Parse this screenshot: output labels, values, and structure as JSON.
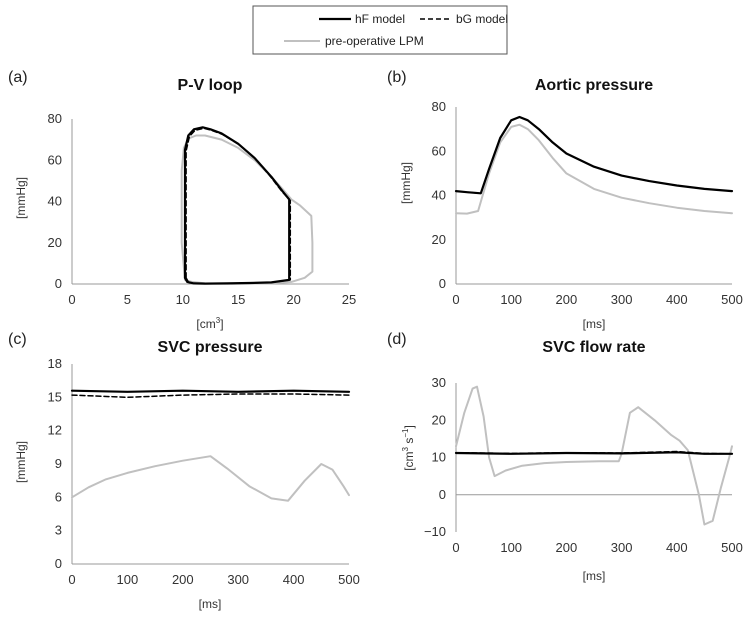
{
  "legend": {
    "entries": [
      {
        "label": "hF model",
        "color": "#000000",
        "style": "solid"
      },
      {
        "label": "bG model",
        "color": "#000000",
        "style": "dashed"
      },
      {
        "label": "pre-operative LPM",
        "color": "#c0c0c0",
        "style": "solid"
      }
    ]
  },
  "chart_data": [
    {
      "type": "line",
      "panel": "(a)",
      "title": "P-V loop",
      "xlabel_main": "[cm",
      "xlabel_sup": "3",
      "xlabel_end": "]",
      "ylabel": "[mmHg]",
      "xlim": [
        0,
        25
      ],
      "ylim": [
        0,
        80
      ],
      "xticks": [
        0,
        5,
        10,
        15,
        20,
        25
      ],
      "yticks": [
        0,
        20,
        40,
        60,
        80
      ],
      "series": [
        {
          "name": "pre-operative LPM",
          "color": "#c0c0c0",
          "dash": "",
          "x": [
            10.2,
            9.9,
            9.9,
            10.1,
            10.5,
            11.2,
            12.0,
            13.5,
            15.0,
            16.5,
            18.0,
            19.0,
            19.8,
            20.6,
            21.6,
            21.7,
            21.7,
            21.0,
            19.8,
            18.0,
            16.0,
            14.0,
            12.0,
            10.8,
            10.2
          ],
          "y": [
            2.0,
            20.0,
            55.0,
            66.0,
            70.5,
            72.0,
            72.0,
            70.0,
            66.0,
            60.0,
            52.0,
            46.0,
            41.0,
            38.0,
            33.0,
            20.0,
            6.0,
            3.0,
            1.0,
            0.3,
            0.2,
            0.1,
            0.3,
            1.0,
            2.0
          ]
        },
        {
          "name": "hF model",
          "color": "#000000",
          "dash": "",
          "x": [
            10.2,
            10.2,
            10.2,
            10.5,
            11.0,
            11.8,
            12.5,
            13.5,
            15.0,
            16.5,
            18.0,
            19.0,
            19.6,
            19.6,
            19.6,
            18.0,
            16.0,
            14.0,
            12.0,
            11.0,
            10.4,
            10.2
          ],
          "y": [
            3.0,
            40.0,
            65.0,
            72.0,
            75.0,
            76.0,
            75.0,
            73.0,
            68.0,
            61.0,
            52.0,
            45.0,
            41.0,
            20.0,
            2.0,
            0.8,
            0.5,
            0.3,
            0.2,
            0.3,
            1.0,
            3.0
          ]
        },
        {
          "name": "bG model",
          "color": "#000000",
          "dash": "5,3",
          "x": [
            10.3,
            10.3,
            10.3,
            10.6,
            11.1,
            11.9,
            12.6,
            13.6,
            15.1,
            16.6,
            18.0,
            19.0,
            19.7,
            19.7,
            19.7,
            18.0,
            16.0,
            14.0,
            12.0,
            11.0,
            10.5,
            10.3
          ],
          "y": [
            3.0,
            40.0,
            64.5,
            71.5,
            74.5,
            75.5,
            74.5,
            72.5,
            67.5,
            60.5,
            51.5,
            44.5,
            40.5,
            20.0,
            2.0,
            0.8,
            0.5,
            0.3,
            0.2,
            0.3,
            1.0,
            3.0
          ]
        }
      ]
    },
    {
      "type": "line",
      "panel": "(b)",
      "title": "Aortic pressure",
      "xlabel": "[ms]",
      "ylabel": "[mmHg]",
      "xlim": [
        0,
        500
      ],
      "ylim": [
        0,
        80
      ],
      "xticks": [
        0,
        100,
        200,
        300,
        400,
        500
      ],
      "yticks": [
        0,
        20,
        40,
        60,
        80
      ],
      "series": [
        {
          "name": "pre-operative LPM",
          "color": "#c0c0c0",
          "dash": "",
          "x": [
            0,
            20,
            40,
            60,
            80,
            100,
            115,
            130,
            150,
            175,
            200,
            250,
            300,
            350,
            400,
            450,
            500
          ],
          "y": [
            32,
            31.8,
            33,
            50,
            64,
            71,
            72,
            70,
            65,
            57,
            50,
            43,
            39,
            36.5,
            34.5,
            33,
            32
          ]
        },
        {
          "name": "hF model",
          "color": "#000000",
          "dash": "",
          "x": [
            0,
            20,
            45,
            60,
            80,
            100,
            115,
            130,
            150,
            175,
            200,
            250,
            300,
            350,
            400,
            450,
            500
          ],
          "y": [
            42,
            41.5,
            41,
            52,
            66,
            74,
            75.5,
            74,
            70,
            64,
            59,
            53,
            49,
            46.5,
            44.5,
            43,
            42
          ]
        },
        {
          "name": "bG model",
          "color": "#000000",
          "dash": "5,3",
          "x": [
            0,
            20,
            45,
            60,
            80,
            100,
            115,
            130,
            150,
            175,
            200,
            250,
            300,
            350,
            400,
            450,
            500
          ],
          "y": [
            42,
            41.5,
            41,
            52,
            66,
            74,
            75.5,
            74,
            70,
            64,
            59,
            53,
            49,
            46.5,
            44.5,
            43,
            42
          ]
        }
      ]
    },
    {
      "type": "line",
      "panel": "(c)",
      "title": "SVC pressure",
      "xlabel": "[ms]",
      "ylabel": "[mmHg]",
      "xlim": [
        0,
        500
      ],
      "ylim": [
        0,
        18
      ],
      "xticks": [
        0,
        100,
        200,
        300,
        400,
        500
      ],
      "yticks": [
        0,
        3,
        6,
        9,
        12,
        15,
        18
      ],
      "series": [
        {
          "name": "pre-operative LPM",
          "color": "#c0c0c0",
          "dash": "",
          "x": [
            0,
            30,
            60,
            100,
            150,
            200,
            250,
            280,
            320,
            360,
            390,
            420,
            450,
            470,
            490,
            500
          ],
          "y": [
            6.0,
            6.9,
            7.6,
            8.2,
            8.8,
            9.3,
            9.7,
            8.6,
            7.0,
            5.9,
            5.7,
            7.5,
            9.0,
            8.5,
            7.0,
            6.2
          ]
        },
        {
          "name": "hF model",
          "color": "#000000",
          "dash": "",
          "x": [
            0,
            100,
            200,
            300,
            400,
            500
          ],
          "y": [
            15.6,
            15.5,
            15.6,
            15.5,
            15.6,
            15.5
          ]
        },
        {
          "name": "bG model",
          "color": "#000000",
          "dash": "5,3",
          "x": [
            0,
            100,
            200,
            300,
            400,
            500
          ],
          "y": [
            15.2,
            15.0,
            15.2,
            15.3,
            15.3,
            15.2
          ]
        }
      ]
    },
    {
      "type": "line",
      "panel": "(d)",
      "title": "SVC flow rate",
      "xlabel": "[ms]",
      "ylabel_main": "[cm",
      "ylabel_sup1": "3",
      "ylabel_mid": " s",
      "ylabel_sup2": "−1",
      "ylabel_end": "]",
      "xlim": [
        0,
        500
      ],
      "ylim": [
        -10,
        30
      ],
      "xticks": [
        0,
        100,
        200,
        300,
        400,
        500
      ],
      "yticks": [
        -10,
        0,
        10,
        20,
        30
      ],
      "series": [
        {
          "name": "pre-operative LPM",
          "color": "#c0c0c0",
          "dash": "",
          "x": [
            0,
            15,
            30,
            38,
            50,
            60,
            70,
            90,
            120,
            160,
            200,
            260,
            295,
            300,
            315,
            330,
            360,
            390,
            405,
            420,
            440,
            450,
            465,
            480,
            495,
            500
          ],
          "y": [
            13,
            22,
            28.5,
            29,
            21,
            10,
            5,
            6.5,
            7.8,
            8.5,
            8.8,
            9.0,
            9.0,
            11,
            22,
            23.5,
            20,
            16,
            14.5,
            12,
            0,
            -8,
            -7,
            2,
            10,
            13
          ]
        },
        {
          "name": "hF model",
          "color": "#000000",
          "dash": "",
          "x": [
            0,
            100,
            200,
            300,
            400,
            450,
            500
          ],
          "y": [
            11.2,
            11.0,
            11.2,
            11.1,
            11.4,
            11.0,
            11.0
          ]
        },
        {
          "name": "bG model",
          "color": "#000000",
          "dash": "5,3",
          "x": [
            0,
            100,
            200,
            300,
            400,
            450,
            500
          ],
          "y": [
            11.3,
            11.1,
            11.3,
            11.2,
            11.6,
            11.1,
            11.0
          ]
        }
      ]
    }
  ]
}
